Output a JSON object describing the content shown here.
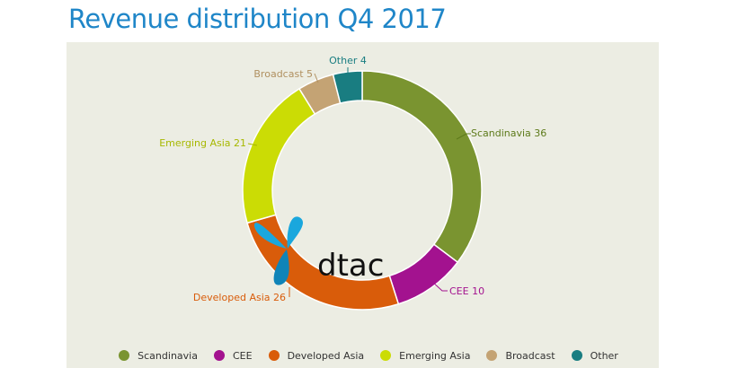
{
  "page": {
    "title": "Revenue distribution Q4 2017"
  },
  "chart_data": {
    "type": "pie",
    "variant": "donut",
    "title": "Revenue distribution Q4 2017",
    "categories": [
      "Scandinavia",
      "CEE",
      "Developed Asia",
      "Emerging Asia",
      "Broadcast",
      "Other"
    ],
    "values": [
      36,
      10,
      26,
      21,
      5,
      4
    ],
    "slice_labels": [
      "Scandinavia 36",
      "CEE 10",
      "Developed Asia 26",
      "Emerging Asia 21",
      "Broadcast 5",
      "Other 4"
    ],
    "colors": [
      "#7a9430",
      "#a3128f",
      "#d95c0a",
      "#cbdc05",
      "#c4a374",
      "#197d81"
    ],
    "label_colors": [
      "#5d7a1a",
      "#a3128f",
      "#d95c0a",
      "#a7b800",
      "#b09060",
      "#197d81"
    ],
    "legend_position": "bottom"
  },
  "logo": {
    "text": "dtac",
    "colors": [
      "#1aa7dd",
      "#0e6f9e"
    ]
  },
  "colors": {
    "title": "#1f86c8",
    "panel": "#ecede3"
  }
}
